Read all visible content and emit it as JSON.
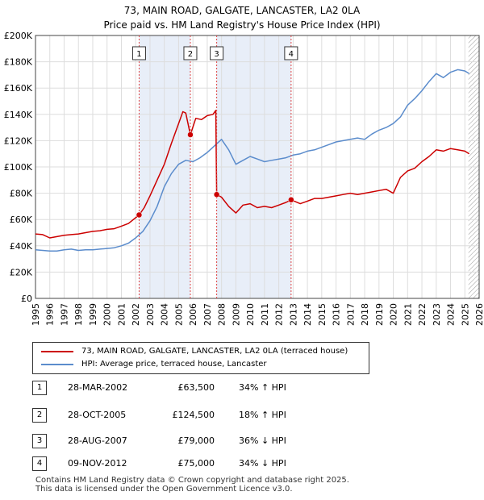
{
  "title_line1": "73, MAIN ROAD, GALGATE, LANCASTER, LA2 0LA",
  "title_line2": "Price paid vs. HM Land Registry's House Price Index (HPI)",
  "legend": {
    "property_label": "73, MAIN ROAD, GALGATE, LANCASTER, LA2 0LA (terraced house)",
    "hpi_label": "HPI: Average price, terraced house, Lancaster"
  },
  "colors": {
    "property": "#cc0000",
    "hpi": "#5b8ccc",
    "shade": "#e8eef8",
    "grid": "#dddddd"
  },
  "sales": [
    {
      "n": "1",
      "date": "28-MAR-2002",
      "price": "£63,500",
      "hpi": "34% ↑ HPI"
    },
    {
      "n": "2",
      "date": "28-OCT-2005",
      "price": "£124,500",
      "hpi": "18% ↑ HPI"
    },
    {
      "n": "3",
      "date": "28-AUG-2007",
      "price": "£79,000",
      "hpi": "36% ↓ HPI"
    },
    {
      "n": "4",
      "date": "09-NOV-2012",
      "price": "£75,000",
      "hpi": "34% ↓ HPI"
    }
  ],
  "footer_line1": "Contains HM Land Registry data © Crown copyright and database right 2025.",
  "footer_line2": "This data is licensed under the Open Government Licence v3.0.",
  "chart_data": {
    "type": "line",
    "title": "73, MAIN ROAD, GALGATE, LANCASTER, LA2 0LA",
    "subtitle": "Price paid vs. HM Land Registry's House Price Index (HPI)",
    "xlabel": "",
    "ylabel": "",
    "xlim": [
      1995,
      2026
    ],
    "ylim": [
      0,
      200000
    ],
    "x_ticks": [
      "1995",
      "1996",
      "1997",
      "1998",
      "1999",
      "2000",
      "2001",
      "2002",
      "2003",
      "2004",
      "2005",
      "2006",
      "2007",
      "2008",
      "2009",
      "2010",
      "2011",
      "2012",
      "2013",
      "2014",
      "2015",
      "2016",
      "2017",
      "2018",
      "2019",
      "2020",
      "2021",
      "2022",
      "2023",
      "2024",
      "2025",
      "2026"
    ],
    "y_ticks": [
      {
        "value": 0,
        "label": "£0"
      },
      {
        "value": 20000,
        "label": "£20K"
      },
      {
        "value": 40000,
        "label": "£40K"
      },
      {
        "value": 60000,
        "label": "£60K"
      },
      {
        "value": 80000,
        "label": "£80K"
      },
      {
        "value": 100000,
        "label": "£100K"
      },
      {
        "value": 120000,
        "label": "£120K"
      },
      {
        "value": 140000,
        "label": "£140K"
      },
      {
        "value": 160000,
        "label": "£160K"
      },
      {
        "value": 180000,
        "label": "£180K"
      },
      {
        "value": 200000,
        "label": "£200K"
      }
    ],
    "grid": true,
    "future_hatch_from": 2025.25,
    "series": [
      {
        "name": "73, MAIN ROAD, GALGATE, LANCASTER, LA2 0LA (terraced house)",
        "x": [
          1995,
          1995.5,
          1996,
          1996.5,
          1997,
          1997.5,
          1998,
          1998.5,
          1999,
          1999.5,
          2000,
          2000.5,
          2001,
          2001.5,
          2002.24,
          2002.6,
          2003,
          2003.5,
          2004,
          2004.5,
          2005,
          2005.3,
          2005.5,
          2005.82,
          2006.2,
          2006.6,
          2007,
          2007.4,
          2007.6,
          2007.66,
          2008,
          2008.5,
          2009,
          2009.5,
          2010,
          2010.5,
          2011,
          2011.5,
          2012,
          2012.5,
          2012.86,
          2013.5,
          2014,
          2014.5,
          2015,
          2015.5,
          2016,
          2016.5,
          2017,
          2017.5,
          2018,
          2018.5,
          2019,
          2019.5,
          2020,
          2020.5,
          2021,
          2021.5,
          2022,
          2022.5,
          2023,
          2023.5,
          2024,
          2024.5,
          2025,
          2025.3
        ],
        "values": [
          49000,
          48500,
          46000,
          47000,
          48000,
          48500,
          49000,
          50000,
          51000,
          51500,
          52500,
          53000,
          55000,
          57000,
          63500,
          69000,
          78000,
          90000,
          102000,
          118000,
          133000,
          142000,
          141000,
          124500,
          137000,
          136000,
          139000,
          140000,
          143000,
          79000,
          77000,
          70000,
          65000,
          71000,
          72000,
          69000,
          70000,
          69000,
          71000,
          73000,
          75000,
          72000,
          74000,
          76000,
          76000,
          77000,
          78000,
          79000,
          80000,
          79000,
          80000,
          81000,
          82000,
          83000,
          80000,
          92000,
          97000,
          99000,
          104000,
          108000,
          113000,
          112000,
          114000,
          113000,
          112000,
          110000
        ]
      },
      {
        "name": "HPI: Average price, terraced house, Lancaster",
        "x": [
          1995,
          1995.5,
          1996,
          1996.5,
          1997,
          1997.5,
          1998,
          1998.5,
          1999,
          1999.5,
          2000,
          2000.5,
          2001,
          2001.5,
          2002,
          2002.5,
          2003,
          2003.5,
          2004,
          2004.5,
          2005,
          2005.5,
          2006,
          2006.5,
          2007,
          2007.5,
          2008,
          2008.5,
          2009,
          2009.5,
          2010,
          2010.5,
          2011,
          2011.5,
          2012,
          2012.5,
          2013,
          2013.5,
          2014,
          2014.5,
          2015,
          2015.5,
          2016,
          2016.5,
          2017,
          2017.5,
          2018,
          2018.5,
          2019,
          2019.5,
          2020,
          2020.5,
          2021,
          2021.5,
          2022,
          2022.5,
          2023,
          2023.5,
          2024,
          2024.5,
          2025,
          2025.3
        ],
        "values": [
          37000,
          36500,
          36000,
          36000,
          37000,
          37500,
          36500,
          37000,
          37000,
          37500,
          38000,
          38500,
          40000,
          42000,
          46000,
          51000,
          59000,
          70000,
          85000,
          95000,
          102000,
          105000,
          104000,
          107000,
          111000,
          116000,
          121000,
          113000,
          102000,
          105000,
          108000,
          106000,
          104000,
          105000,
          106000,
          107000,
          109000,
          110000,
          112000,
          113000,
          115000,
          117000,
          119000,
          120000,
          121000,
          122000,
          121000,
          125000,
          128000,
          130000,
          133000,
          138000,
          147000,
          152000,
          158000,
          165000,
          171000,
          168000,
          172000,
          174000,
          173000,
          171000
        ]
      }
    ],
    "annotations": [
      {
        "label": "1",
        "x": 2002.24,
        "value": 63500
      },
      {
        "label": "2",
        "x": 2005.82,
        "value": 124500
      },
      {
        "label": "3",
        "x": 2007.66,
        "value": 79000
      },
      {
        "label": "4",
        "x": 2012.86,
        "value": 75000
      }
    ]
  }
}
